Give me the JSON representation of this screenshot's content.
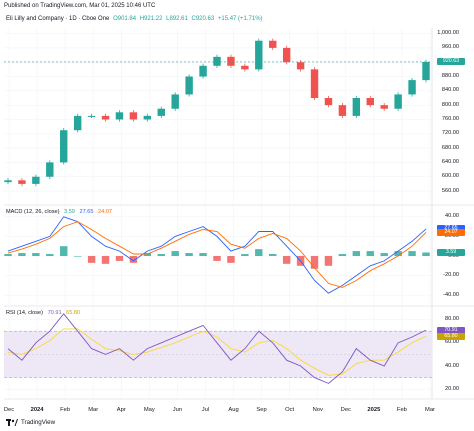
{
  "header": {
    "published": "Published on TradingView.com, Mar 01, 2025 10:46 UTC"
  },
  "legend": {
    "symbol": "Eli Lilly and Company · 1D · Cboe One",
    "open": "O901.84",
    "high": "H921.22",
    "low": "L892.61",
    "close": "C920.63",
    "change": "+15.47 (+1.71%)"
  },
  "macd_legend": {
    "name": "MACD (12, 26, close)",
    "hist": "3.59",
    "macd": "27.65",
    "signal": "24.07"
  },
  "rsi_legend": {
    "name": "RSI (14, close)",
    "rsi": "70.91",
    "ma": "65.80"
  },
  "footer": {
    "brand": "TradingView"
  },
  "colors": {
    "up": "#26a69a",
    "down": "#ef5350",
    "macd_line": "#2962ff",
    "signal_line": "#ff6d00",
    "rsi_line": "#7e57c2",
    "rsi_ma": "#fdd835",
    "rsi_band": "#ede7f6",
    "price_line": "#26a69a"
  },
  "chart_data": [
    {
      "type": "candlestick",
      "title": "Eli Lilly and Company · 1D · Cboe One",
      "y_ticks": [
        560,
        600,
        640,
        680,
        720,
        760,
        800,
        840,
        880,
        920,
        960,
        1000
      ],
      "y_tick_labels": [
        "560.00",
        "600.00",
        "640.00",
        "680.00",
        "720.00",
        "760.00",
        "800.00",
        "840.00",
        "880.00",
        "920.00",
        "960.00",
        "1,000.00"
      ],
      "ylim": [
        535,
        1010
      ],
      "last_price": 920.63,
      "last_price_label": "920.63",
      "x_labels": [
        "Dec",
        "2024",
        "Feb",
        "Mar",
        "Apr",
        "May",
        "Jun",
        "Jul",
        "Aug",
        "Sep",
        "Oct",
        "Nov",
        "Dec",
        "2025",
        "Feb",
        "Mar"
      ],
      "series": [
        {
          "name": "price",
          "x": [
            "2023-12-01",
            "2023-12-15",
            "2024-01-02",
            "2024-01-16",
            "2024-02-01",
            "2024-02-15",
            "2024-03-01",
            "2024-03-15",
            "2024-04-01",
            "2024-04-15",
            "2024-05-01",
            "2024-05-15",
            "2024-06-03",
            "2024-06-17",
            "2024-07-01",
            "2024-07-15",
            "2024-08-01",
            "2024-08-15",
            "2024-09-03",
            "2024-09-16",
            "2024-10-01",
            "2024-10-15",
            "2024-11-01",
            "2024-11-15",
            "2024-12-02",
            "2024-12-16",
            "2025-01-02",
            "2025-01-15",
            "2025-02-03",
            "2025-02-18",
            "2025-02-28"
          ],
          "values": [
            590,
            580,
            600,
            640,
            730,
            770,
            770,
            760,
            780,
            760,
            770,
            790,
            830,
            880,
            910,
            935,
            910,
            900,
            980,
            960,
            920,
            900,
            820,
            800,
            770,
            820,
            800,
            790,
            830,
            870,
            920.63
          ]
        }
      ]
    },
    {
      "type": "line",
      "title": "MACD (12, 26, close)",
      "y_ticks": [
        40,
        20,
        0,
        -20,
        -40
      ],
      "y_tick_labels": [
        "40.00",
        "20.00",
        "0.00",
        "-20.00",
        "-40.00"
      ],
      "ylim": [
        -50,
        50
      ],
      "last_values": {
        "histogram": 3.59,
        "macd": 27.65,
        "signal": 24.07
      },
      "series": [
        {
          "name": "MACD",
          "values": [
            5,
            10,
            15,
            20,
            40,
            35,
            20,
            10,
            5,
            -5,
            5,
            10,
            20,
            25,
            30,
            20,
            5,
            10,
            25,
            25,
            10,
            -5,
            -25,
            -38,
            -30,
            -20,
            -10,
            -5,
            5,
            15,
            27.65
          ]
        },
        {
          "name": "Signal",
          "values": [
            3,
            7,
            12,
            18,
            30,
            35,
            27,
            18,
            10,
            2,
            2,
            8,
            15,
            22,
            27,
            25,
            12,
            8,
            18,
            23,
            18,
            5,
            -12,
            -28,
            -32,
            -25,
            -15,
            -8,
            0,
            10,
            24.07
          ]
        },
        {
          "name": "Histogram",
          "values": [
            2,
            3,
            3,
            2,
            10,
            0,
            -7,
            -8,
            -5,
            -7,
            3,
            2,
            5,
            3,
            3,
            -5,
            -7,
            2,
            7,
            2,
            -8,
            -10,
            -13,
            -10,
            2,
            5,
            5,
            3,
            5,
            5,
            3.59
          ]
        }
      ]
    },
    {
      "type": "line",
      "title": "RSI (14, close)",
      "y_ticks": [
        80,
        70,
        60,
        40,
        20
      ],
      "y_tick_labels": [
        "80.00",
        "70.00",
        "60.00",
        "40.00",
        "20.00"
      ],
      "ylim": [
        15,
        90
      ],
      "band": [
        30,
        70
      ],
      "last_values": {
        "rsi": 70.91,
        "ma": 65.8
      },
      "series": [
        {
          "name": "RSI",
          "values": [
            55,
            45,
            60,
            70,
            85,
            70,
            55,
            50,
            55,
            45,
            55,
            60,
            65,
            70,
            75,
            60,
            45,
            55,
            70,
            60,
            45,
            40,
            30,
            25,
            35,
            55,
            45,
            40,
            60,
            65,
            70.91
          ]
        },
        {
          "name": "RSI-based MA",
          "values": [
            52,
            50,
            55,
            62,
            72,
            72,
            63,
            55,
            53,
            50,
            52,
            56,
            60,
            65,
            70,
            65,
            55,
            52,
            60,
            62,
            55,
            45,
            38,
            32,
            33,
            42,
            45,
            45,
            52,
            60,
            65.8
          ]
        }
      ]
    }
  ]
}
